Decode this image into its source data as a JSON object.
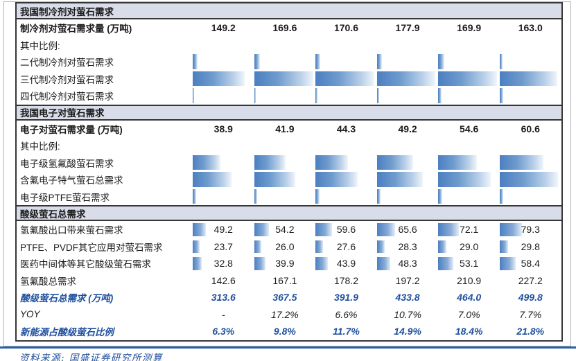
{
  "source": "资料来源: 国盛证券研究所测算",
  "colors": {
    "section_header_bg": "#d9dce9",
    "bar_blue": "#4c7fc1",
    "bar_fade": "#f0f5fb",
    "accent_blue_text": "#1e4f9f",
    "bottom_rule_blue": "#2a5ca8",
    "table_border": "#363636"
  },
  "table": {
    "sections": [
      {
        "header": "我国制冷剂对萤石需求",
        "rows": [
          {
            "label": "制冷剂对萤石需求量 (万吨)",
            "style": "bold",
            "values": [
              "149.2",
              "169.6",
              "170.6",
              "177.9",
              "169.9",
              "163.0"
            ]
          },
          {
            "label": "其中比例:",
            "style": "plain"
          },
          {
            "label": "二代制冷剂对萤石需求",
            "style": "plain",
            "bar_kind": "ratio",
            "bars_pct": [
              8,
              9,
              8,
              8,
              10,
              5
            ]
          },
          {
            "label": "三代制冷剂对萤石需求",
            "style": "plain",
            "bar_kind": "ratio",
            "bars_pct": [
              85,
              96,
              96,
              95,
              96,
              94
            ]
          },
          {
            "label": "四代制冷剂对萤石需求",
            "style": "plain",
            "bar_kind": "ratio",
            "bars_pct": [
              2,
              3,
              3,
              4,
              5,
              6
            ]
          }
        ]
      },
      {
        "header": "我国电子对萤石需求",
        "rows": [
          {
            "label": "电子对萤石需求量 (万吨)",
            "style": "bold",
            "values": [
              "38.9",
              "41.9",
              "44.3",
              "49.2",
              "54.6",
              "60.6"
            ]
          },
          {
            "label": "其中比例:",
            "style": "plain"
          },
          {
            "label": "电子级氢氟酸萤石需求",
            "style": "plain",
            "bar_kind": "ratio",
            "bars_pct": [
              45,
              51,
              53,
              59,
              63,
              71
            ]
          },
          {
            "label": "含氟电子特气萤石总需求",
            "style": "plain",
            "bar_kind": "ratio",
            "bars_pct": [
              63,
              67,
              69,
              75,
              85,
              95
            ]
          },
          {
            "label": "电子级PTFE萤石需求",
            "style": "plain",
            "bar_kind": "ratio",
            "bars_pct": [
              6,
              5,
              6,
              6,
              6,
              6
            ]
          }
        ]
      },
      {
        "header": "酸级萤石总需求",
        "rows": [
          {
            "label": "氢氟酸出口带来萤石需求",
            "style": "plain",
            "bar_kind": "val",
            "values": [
              "49.2",
              "54.2",
              "59.6",
              "65.6",
              "72.1",
              "79.3"
            ],
            "bars_pct": [
              22,
              24,
              27,
              30,
              33,
              36
            ]
          },
          {
            "label": "PTFE、PVDF其它应用对萤石需求",
            "style": "plain",
            "bar_kind": "val",
            "values": [
              "23.7",
              "26.0",
              "27.6",
              "28.3",
              "29.0",
              "29.8"
            ],
            "bars_pct": [
              11,
              12,
              12.5,
              13,
              13,
              13.5
            ]
          },
          {
            "label": "医药中间体等其它酸级萤石需求",
            "style": "plain",
            "bar_kind": "val",
            "values": [
              "32.8",
              "39.9",
              "43.9",
              "48.3",
              "53.1",
              "58.4"
            ],
            "bars_pct": [
              15,
              18,
              20,
              22,
              24,
              26
            ]
          },
          {
            "label": "氢氟酸总需求",
            "style": "plain",
            "values": [
              "142.6",
              "167.1",
              "178.2",
              "197.2",
              "210.9",
              "227.2"
            ]
          },
          {
            "label": "酸级萤石总需求 (万吨)",
            "style": "blue",
            "values": [
              "313.6",
              "367.5",
              "391.9",
              "433.8",
              "464.0",
              "499.8"
            ]
          },
          {
            "label": "YOY",
            "style": "italic",
            "values": [
              "-",
              "17.2%",
              "6.6%",
              "10.7%",
              "7.0%",
              "7.7%"
            ]
          },
          {
            "label": "新能源占酸级萤石比例",
            "style": "blue",
            "values": [
              "6.3%",
              "9.8%",
              "11.7%",
              "14.9%",
              "18.4%",
              "21.8%"
            ]
          }
        ]
      }
    ]
  }
}
